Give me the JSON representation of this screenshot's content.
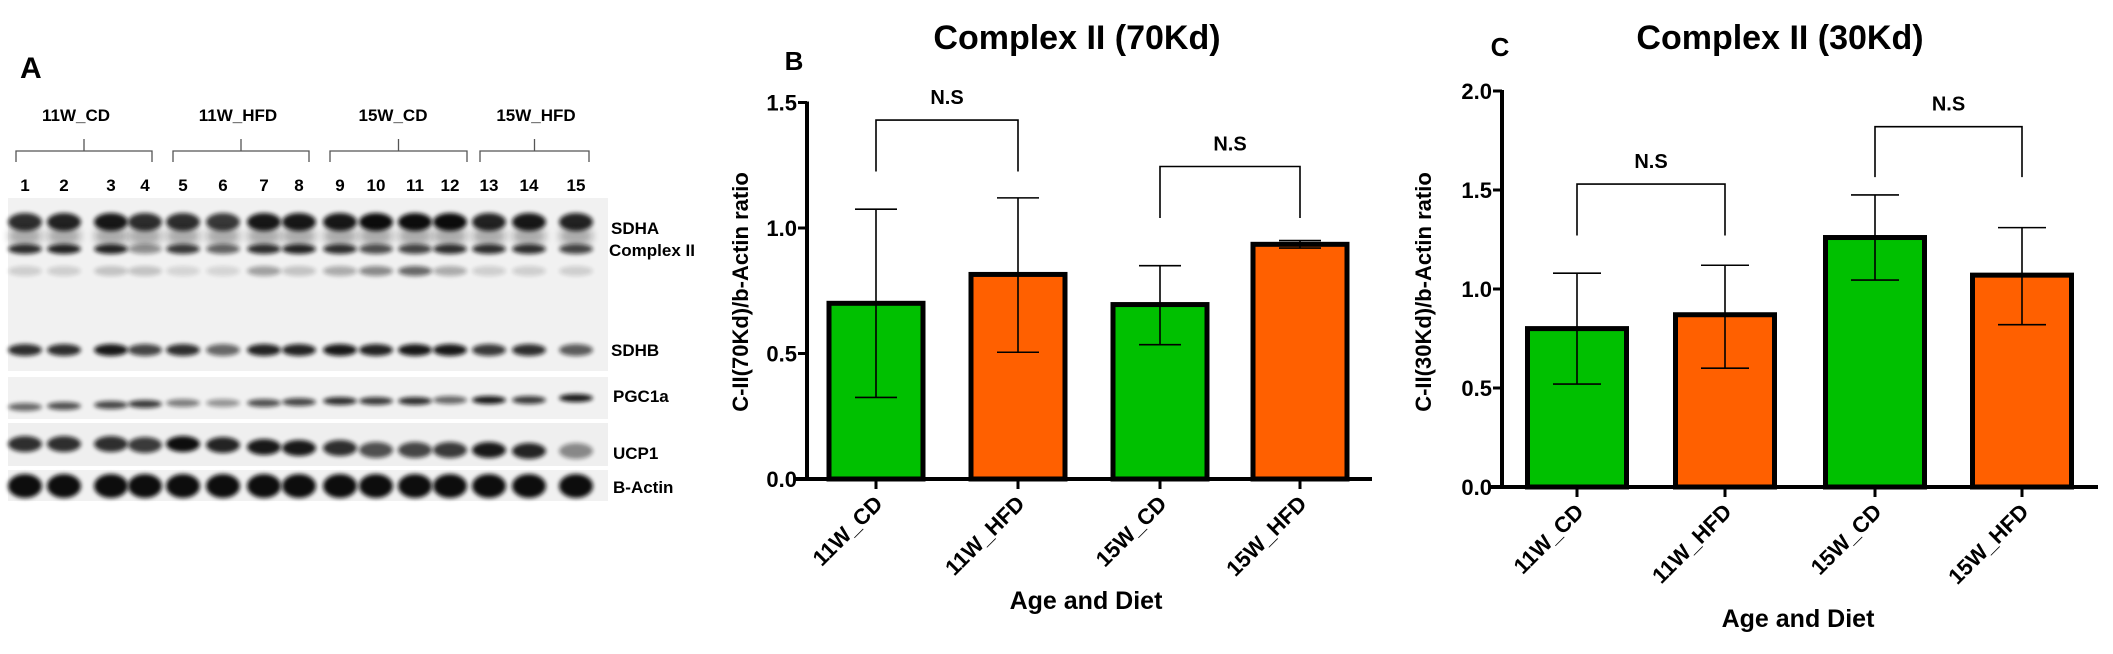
{
  "panel_a": {
    "label": "A",
    "groups": [
      "11W_CD",
      "11W_HFD",
      "15W_CD",
      "15W_HFD"
    ],
    "lanes": [
      "1",
      "2",
      "3",
      "4",
      "5",
      "6",
      "7",
      "8",
      "9",
      "10",
      "11",
      "12",
      "13",
      "14",
      "15"
    ],
    "bands": {
      "sdha": "SDHA",
      "complex2": "Complex II",
      "sdhb": "SDHB",
      "pgc1a": "PGC1a",
      "ucp1": "UCP1",
      "bactin": "B-Actin"
    }
  },
  "chart_data": [
    {
      "panel_label": "B",
      "type": "bar",
      "title": "Complex II  (70Kd)",
      "xlabel": "Age and Diet",
      "ylabel": "C-II(70Kd)/b-Actin ratio",
      "categories": [
        "11W_CD",
        "11W_HFD",
        "15W_CD",
        "15W_HFD"
      ],
      "values": [
        0.7,
        0.815,
        0.695,
        0.935
      ],
      "error_upper": [
        1.075,
        1.12,
        0.85,
        0.95
      ],
      "error_lower": [
        0.325,
        0.505,
        0.535,
        0.92
      ],
      "colors": [
        "#00c000",
        "#ff6000",
        "#00c000",
        "#ff6000"
      ],
      "ylim": [
        0,
        1.5
      ],
      "yticks": [
        "0.0",
        "0.5",
        "1.0",
        "1.5"
      ],
      "ytick_values": [
        0,
        0.5,
        1.0,
        1.5
      ],
      "grid": false,
      "annotations": [
        {
          "from": 0,
          "to": 1,
          "y": 1.43,
          "leg_end": 1.225,
          "label": "N.S"
        },
        {
          "from": 2,
          "to": 3,
          "y": 1.245,
          "leg_end": 1.04,
          "label": "N.S"
        }
      ]
    },
    {
      "panel_label": "C",
      "type": "bar",
      "title": "Complex II  (30Kd)",
      "xlabel": "Age and Diet",
      "ylabel": "C-II(30Kd)/b-Actin ratio",
      "categories": [
        "11W_CD",
        "11W_HFD",
        "15W_CD",
        "15W_HFD"
      ],
      "values": [
        0.8,
        0.87,
        1.26,
        1.07
      ],
      "error_upper": [
        1.08,
        1.12,
        1.475,
        1.31
      ],
      "error_lower": [
        0.52,
        0.6,
        1.045,
        0.82
      ],
      "colors": [
        "#00c000",
        "#ff6000",
        "#00c000",
        "#ff6000"
      ],
      "ylim": [
        0,
        2.0
      ],
      "yticks": [
        "0.0",
        "0.5",
        "1.0",
        "1.5",
        "2.0"
      ],
      "ytick_values": [
        0,
        0.5,
        1.0,
        1.5,
        2.0
      ],
      "grid": false,
      "annotations": [
        {
          "from": 0,
          "to": 1,
          "y": 1.53,
          "leg_end": 1.27,
          "label": "N.S"
        },
        {
          "from": 2,
          "to": 3,
          "y": 1.82,
          "leg_end": 1.565,
          "label": "N.S"
        }
      ]
    }
  ]
}
